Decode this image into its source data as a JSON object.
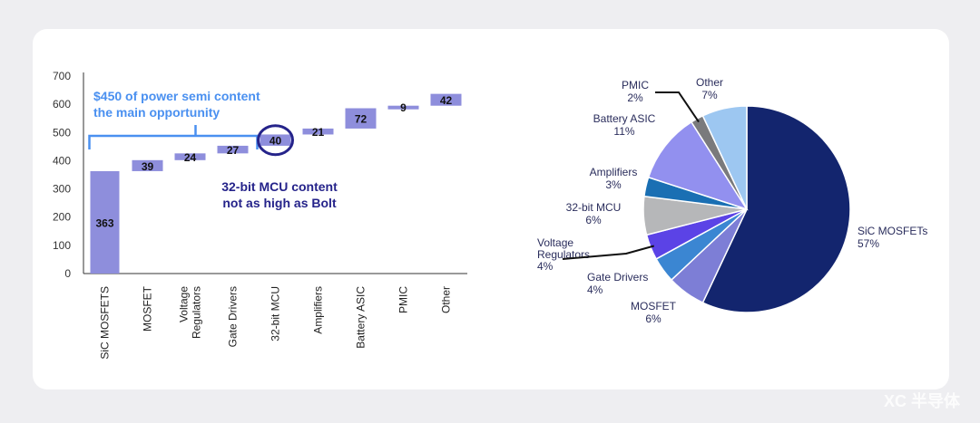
{
  "chart_data": [
    {
      "type": "bar",
      "subtype": "waterfall",
      "categories": [
        "SiC MOSFETS",
        "MOSFET",
        "Voltage Regulators",
        "Gate Drivers",
        "32-bit MCU",
        "Amplifiers",
        "Battery ASIC",
        "PMIC",
        "Other"
      ],
      "values": [
        363,
        39,
        24,
        27,
        40,
        21,
        72,
        9,
        42
      ],
      "ylim": [
        0,
        700
      ],
      "yticks": [
        0,
        100,
        200,
        300,
        400,
        500,
        600,
        700
      ],
      "bar_color": "#8e8edc",
      "annotations": {
        "bracket_text_1": "$450 of power semi content",
        "bracket_text_2": "the main opportunity",
        "mcu_text_1": "32-bit MCU content",
        "mcu_text_2": "not as high as Bolt"
      },
      "annotation_colors": {
        "bracket": "#4a90f0",
        "mcu": "#25238a"
      }
    },
    {
      "type": "pie",
      "slices": [
        {
          "label": "SiC MOSFETs",
          "pct": "57%",
          "value": 57,
          "color": "#13256e"
        },
        {
          "label": "MOSFET",
          "pct": "6%",
          "value": 6,
          "color": "#7d7ed6"
        },
        {
          "label": "Gate Drivers",
          "pct": "4%",
          "value": 4,
          "color": "#3b86d2"
        },
        {
          "label": "Voltage Regulators",
          "pct": "4%",
          "value": 4,
          "color": "#5b43e6"
        },
        {
          "label": "32-bit MCU",
          "pct": "6%",
          "value": 6,
          "color": "#b6b7b9"
        },
        {
          "label": "Amplifiers",
          "pct": "3%",
          "value": 3,
          "color": "#1a6fb3"
        },
        {
          "label": "Battery ASIC",
          "pct": "11%",
          "value": 11,
          "color": "#9290ef"
        },
        {
          "label": "PMIC",
          "pct": "2%",
          "value": 2,
          "color": "#7a7a7c"
        },
        {
          "label": "Other",
          "pct": "7%",
          "value": 7,
          "color": "#9dc7f1"
        }
      ]
    }
  ],
  "watermark": "XC 半导体"
}
